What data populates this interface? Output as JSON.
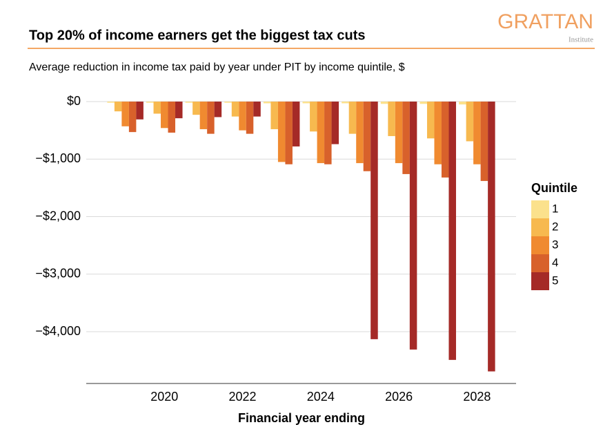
{
  "chart_data": {
    "type": "bar",
    "title": "Top 20% of income earners get the biggest tax cuts",
    "subtitle": "Average reduction in income tax paid by year under PIT by income quintile, $",
    "logo": "GRATTAN",
    "logo_subtitle": "Institute",
    "x_label": "Financial year ending",
    "legend_title": "Quintile",
    "categories": [
      null,
      "2020",
      null,
      "2022",
      null,
      "2024",
      null,
      "2026",
      null,
      "2028"
    ],
    "series": [
      {
        "name": "1",
        "color": "#fbe18c",
        "values": [
          -20,
          -20,
          -20,
          -20,
          -30,
          -30,
          -30,
          -40,
          -40,
          -50
        ]
      },
      {
        "name": "2",
        "color": "#f7b94f",
        "values": [
          -170,
          -210,
          -230,
          -260,
          -480,
          -520,
          -560,
          -600,
          -640,
          -690
        ]
      },
      {
        "name": "3",
        "color": "#f08a30",
        "values": [
          -430,
          -460,
          -480,
          -500,
          -1050,
          -1070,
          -1070,
          -1070,
          -1090,
          -1090
        ]
      },
      {
        "name": "4",
        "color": "#d8612b",
        "values": [
          -530,
          -540,
          -560,
          -560,
          -1090,
          -1090,
          -1210,
          -1260,
          -1320,
          -1380
        ]
      },
      {
        "name": "5",
        "color": "#a52a27",
        "values": [
          -310,
          -290,
          -270,
          -260,
          -780,
          -740,
          -4130,
          -4310,
          -4490,
          -4690
        ]
      }
    ],
    "ylim": [
      -4900,
      0
    ],
    "yticks": [
      {
        "value": 0,
        "label": "$0"
      },
      {
        "value": -1000,
        "label": "−$1,000"
      },
      {
        "value": -2000,
        "label": "−$2,000"
      },
      {
        "value": -3000,
        "label": "−$3,000"
      },
      {
        "value": -4000,
        "label": "−$4,000"
      }
    ],
    "grid": true
  }
}
